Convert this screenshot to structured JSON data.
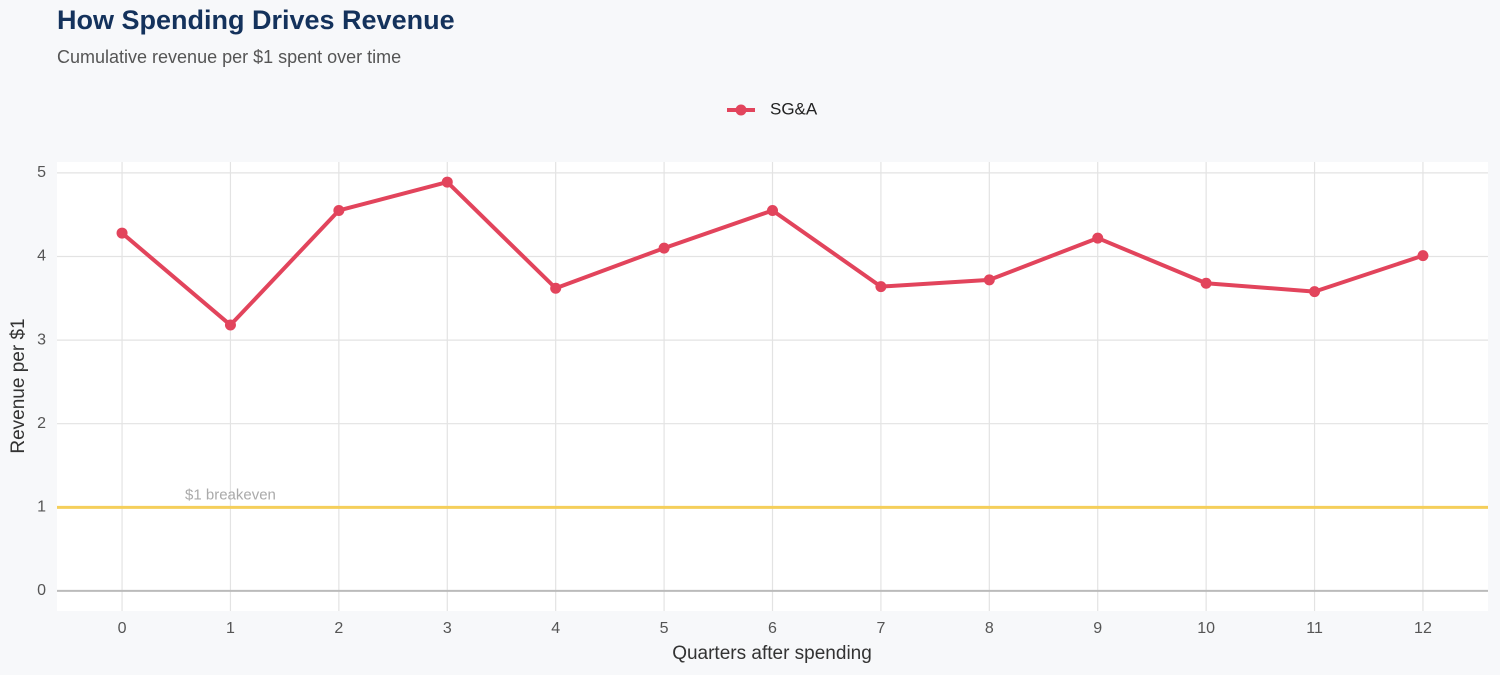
{
  "chart_data": {
    "type": "line",
    "title": "How Spending Drives Revenue",
    "subtitle": "Cumulative revenue per $1 spent over time",
    "x_label": "Quarters after spending",
    "y_label": "Revenue per $1",
    "x": [
      0,
      1,
      2,
      3,
      4,
      5,
      6,
      7,
      8,
      9,
      10,
      11,
      12
    ],
    "series": [
      {
        "name": "SG&A",
        "color": "#e2445c",
        "values": [
          4.28,
          3.18,
          4.55,
          4.89,
          3.62,
          4.1,
          4.55,
          3.64,
          3.72,
          4.22,
          3.68,
          3.58,
          4.01
        ]
      }
    ],
    "xlim": [
      -0.6,
      12.6
    ],
    "xticks": [
      0,
      1,
      2,
      3,
      4,
      5,
      6,
      7,
      8,
      9,
      10,
      11,
      12
    ],
    "ylim": [
      -0.24,
      5.13
    ],
    "yticks": [
      0,
      1,
      2,
      3,
      4,
      5
    ],
    "grid": true,
    "legend": "top",
    "reference_line": {
      "value": 1,
      "label": "$1 breakeven",
      "color": "#f5cf5b"
    }
  }
}
